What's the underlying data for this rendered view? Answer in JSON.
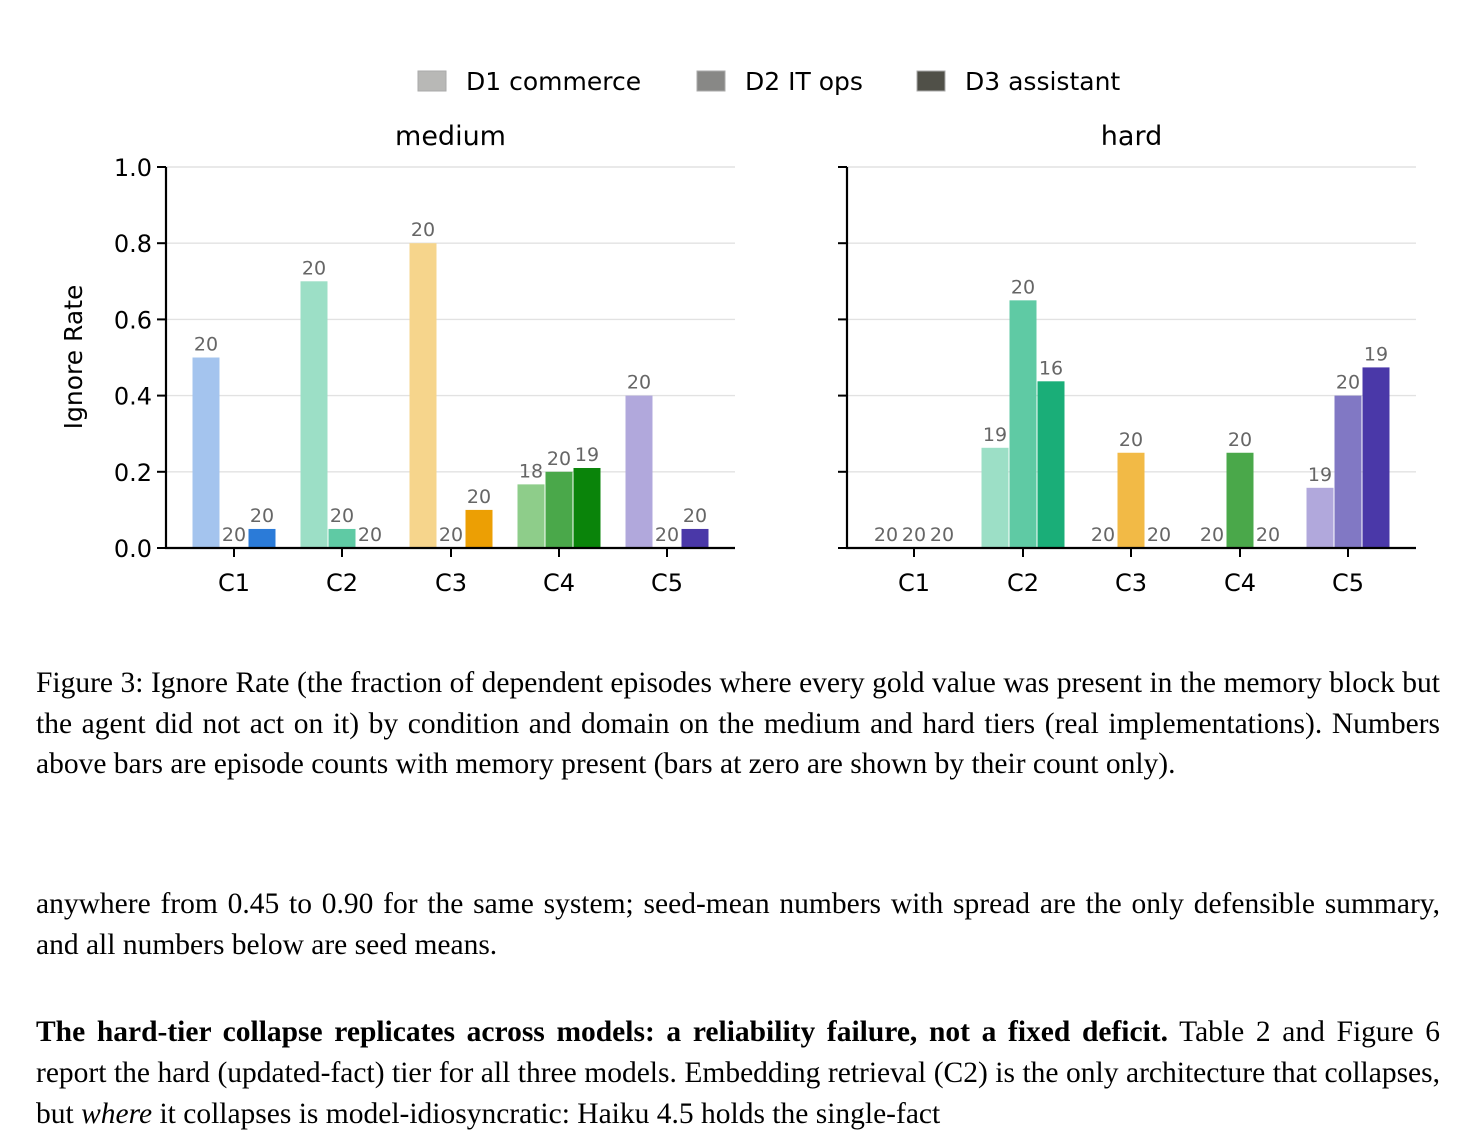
{
  "chart_data": {
    "type": "bar",
    "ylabel": "Ignore Rate",
    "ylim": [
      0,
      1.0
    ],
    "yticks": [
      "0.0",
      "0.2",
      "0.4",
      "0.6",
      "0.8",
      "1.0"
    ],
    "grid": "horizontal",
    "legend_position": "top-center",
    "categories": [
      "C1",
      "C2",
      "C3",
      "C4",
      "C5"
    ],
    "series_names": [
      "D1 commerce",
      "D2 IT ops",
      "D3 assistant"
    ],
    "legend_colors": [
      "#b8b8b6",
      "#888886",
      "#505048"
    ],
    "condition_colors": {
      "C1": [
        "#a4c4ee",
        "#7aaae6",
        "#2b7bd8"
      ],
      "C2": [
        "#9cdfc6",
        "#5fcaa4",
        "#1aae78"
      ],
      "C3": [
        "#f6d58c",
        "#f2ba46",
        "#ec9f04"
      ],
      "C4": [
        "#8ecd8a",
        "#4aa84a",
        "#0a840a"
      ],
      "C5": [
        "#b1a8dc",
        "#8178c4",
        "#4a38a8"
      ]
    },
    "panels": [
      {
        "title": "medium",
        "values": [
          [
            0.5,
            0.0,
            0.05
          ],
          [
            0.7,
            0.05,
            0.0
          ],
          [
            0.8,
            0.0,
            0.1
          ],
          [
            0.167,
            0.2,
            0.21
          ],
          [
            0.4,
            0.0,
            0.05
          ]
        ],
        "counts": [
          [
            "20",
            "20",
            "20"
          ],
          [
            "20",
            "20",
            "20"
          ],
          [
            "20",
            "20",
            "20"
          ],
          [
            "18",
            "20",
            "19"
          ],
          [
            "20",
            "20",
            "20"
          ]
        ]
      },
      {
        "title": "hard",
        "values": [
          [
            0.0,
            0.0,
            0.0
          ],
          [
            0.263,
            0.65,
            0.4375
          ],
          [
            0.0,
            0.25,
            0.0
          ],
          [
            0.0,
            0.25,
            0.0
          ],
          [
            0.158,
            0.4,
            0.474
          ]
        ],
        "counts": [
          [
            "20",
            "20",
            "20"
          ],
          [
            "19",
            "20",
            "16"
          ],
          [
            "20",
            "20",
            "20"
          ],
          [
            "20",
            "20",
            "20"
          ],
          [
            "19",
            "20",
            "19"
          ]
        ]
      }
    ]
  },
  "caption": "Figure 3:  Ignore Rate (the fraction of dependent episodes where every gold value was present in the memory block but the agent did not act on it) by condition and domain on the medium and hard tiers (real implementations). Numbers above bars are episode counts with memory present (bars at zero are shown by their count only).",
  "paragraph1": "anywhere from 0.45 to 0.90 for the same system; seed-mean numbers with spread are the only defensible summary, and all numbers below are seed means.",
  "paragraph2": {
    "heading": "The hard-tier collapse replicates across models: a reliability failure, not a fixed deficit.",
    "text_a": " Table 2 and Figure 6 report the hard (updated-fact) tier for all three models.  Embedding retrieval (C2) is the only architecture that collapses, but ",
    "emphasis": "where",
    "text_b": " it collapses is model-idiosyncratic: Haiku 4.5 holds the single-fact"
  }
}
